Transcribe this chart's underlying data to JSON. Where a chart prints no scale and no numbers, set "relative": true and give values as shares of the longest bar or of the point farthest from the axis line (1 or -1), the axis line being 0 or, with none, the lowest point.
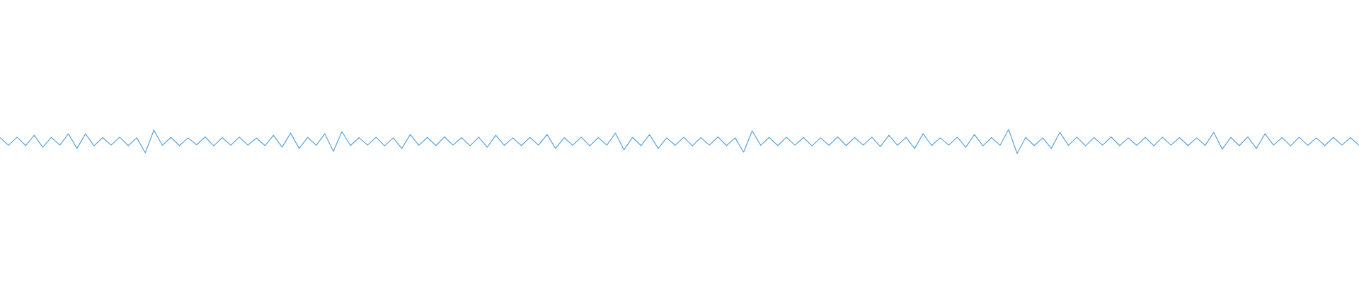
{
  "chart_data": {
    "type": "line",
    "relative": true,
    "color": "#5ba4dc",
    "categories": [
      null,
      null,
      null,
      null,
      null,
      null,
      null,
      null,
      null,
      null,
      null,
      null,
      null,
      null,
      null,
      null,
      null,
      null,
      null,
      null,
      null,
      null,
      null,
      null,
      null,
      null,
      null,
      null,
      null,
      null,
      null,
      null,
      null,
      null,
      null,
      null,
      null,
      null,
      null,
      null,
      null,
      null,
      null,
      null,
      null,
      null,
      null,
      null,
      null,
      null,
      null,
      null,
      null,
      null,
      null,
      null,
      null,
      null,
      null,
      null,
      null,
      null,
      null,
      null,
      null,
      null,
      null,
      null,
      null,
      null,
      null,
      null,
      null,
      null,
      null,
      null,
      null,
      null,
      null,
      null,
      null,
      null,
      null,
      null,
      null,
      null,
      null,
      null,
      null,
      null,
      null,
      null,
      null,
      null,
      null,
      null,
      null,
      null,
      null,
      null,
      null,
      null,
      null,
      null,
      null,
      null,
      null,
      null,
      null,
      null,
      null,
      null,
      null,
      null,
      null,
      null,
      null,
      null,
      null,
      null,
      null,
      null,
      null,
      null,
      null,
      null,
      null,
      null,
      null,
      null,
      null,
      null,
      null,
      null,
      null,
      null,
      null,
      null,
      null,
      null,
      null,
      null,
      null,
      null,
      null,
      null,
      null,
      null,
      null,
      null,
      null,
      null,
      null,
      null,
      null,
      null,
      null,
      null,
      null,
      null
    ],
    "values": [
      0.66,
      0.34,
      0.68,
      0.33,
      0.76,
      0.26,
      0.67,
      0.35,
      0.82,
      0.21,
      0.82,
      0.32,
      0.66,
      0.35,
      0.68,
      0.33,
      0.65,
      0.03,
      0.97,
      0.34,
      0.67,
      0.33,
      0.65,
      0.36,
      0.69,
      0.32,
      0.66,
      0.34,
      0.68,
      0.35,
      0.64,
      0.33,
      0.76,
      0.26,
      0.85,
      0.21,
      0.67,
      0.34,
      0.82,
      0.09,
      0.91,
      0.33,
      0.66,
      0.35,
      0.68,
      0.32,
      0.65,
      0.21,
      0.79,
      0.34,
      0.67,
      0.33,
      0.69,
      0.35,
      0.66,
      0.32,
      0.68,
      0.26,
      0.76,
      0.34,
      0.65,
      0.33,
      0.67,
      0.35,
      0.79,
      0.21,
      0.66,
      0.34,
      0.68,
      0.32,
      0.66,
      0.35,
      0.85,
      0.15,
      0.67,
      0.33,
      0.79,
      0.21,
      0.65,
      0.34,
      0.68,
      0.32,
      0.66,
      0.35,
      0.69,
      0.33,
      0.65,
      0.06,
      0.94,
      0.34,
      0.67,
      0.33,
      0.68,
      0.35,
      0.66,
      0.32,
      0.65,
      0.34,
      0.69,
      0.33,
      0.66,
      0.35,
      0.68,
      0.29,
      0.76,
      0.34,
      0.67,
      0.21,
      0.82,
      0.33,
      0.65,
      0.35,
      0.68,
      0.26,
      0.79,
      0.32,
      0.66,
      0.34,
      1.0,
      0.0,
      0.67,
      0.33,
      0.65,
      0.21,
      0.88,
      0.34,
      0.68,
      0.32,
      0.66,
      0.35,
      0.69,
      0.33,
      0.65,
      0.34,
      0.67,
      0.32,
      0.68,
      0.35,
      0.66,
      0.33,
      0.65,
      0.34,
      0.88,
      0.18,
      0.67,
      0.33,
      0.69,
      0.21,
      0.82,
      0.35,
      0.66,
      0.32,
      0.68,
      0.34,
      0.65,
      0.33,
      0.67,
      0.35,
      0.66,
      0.34
    ]
  }
}
